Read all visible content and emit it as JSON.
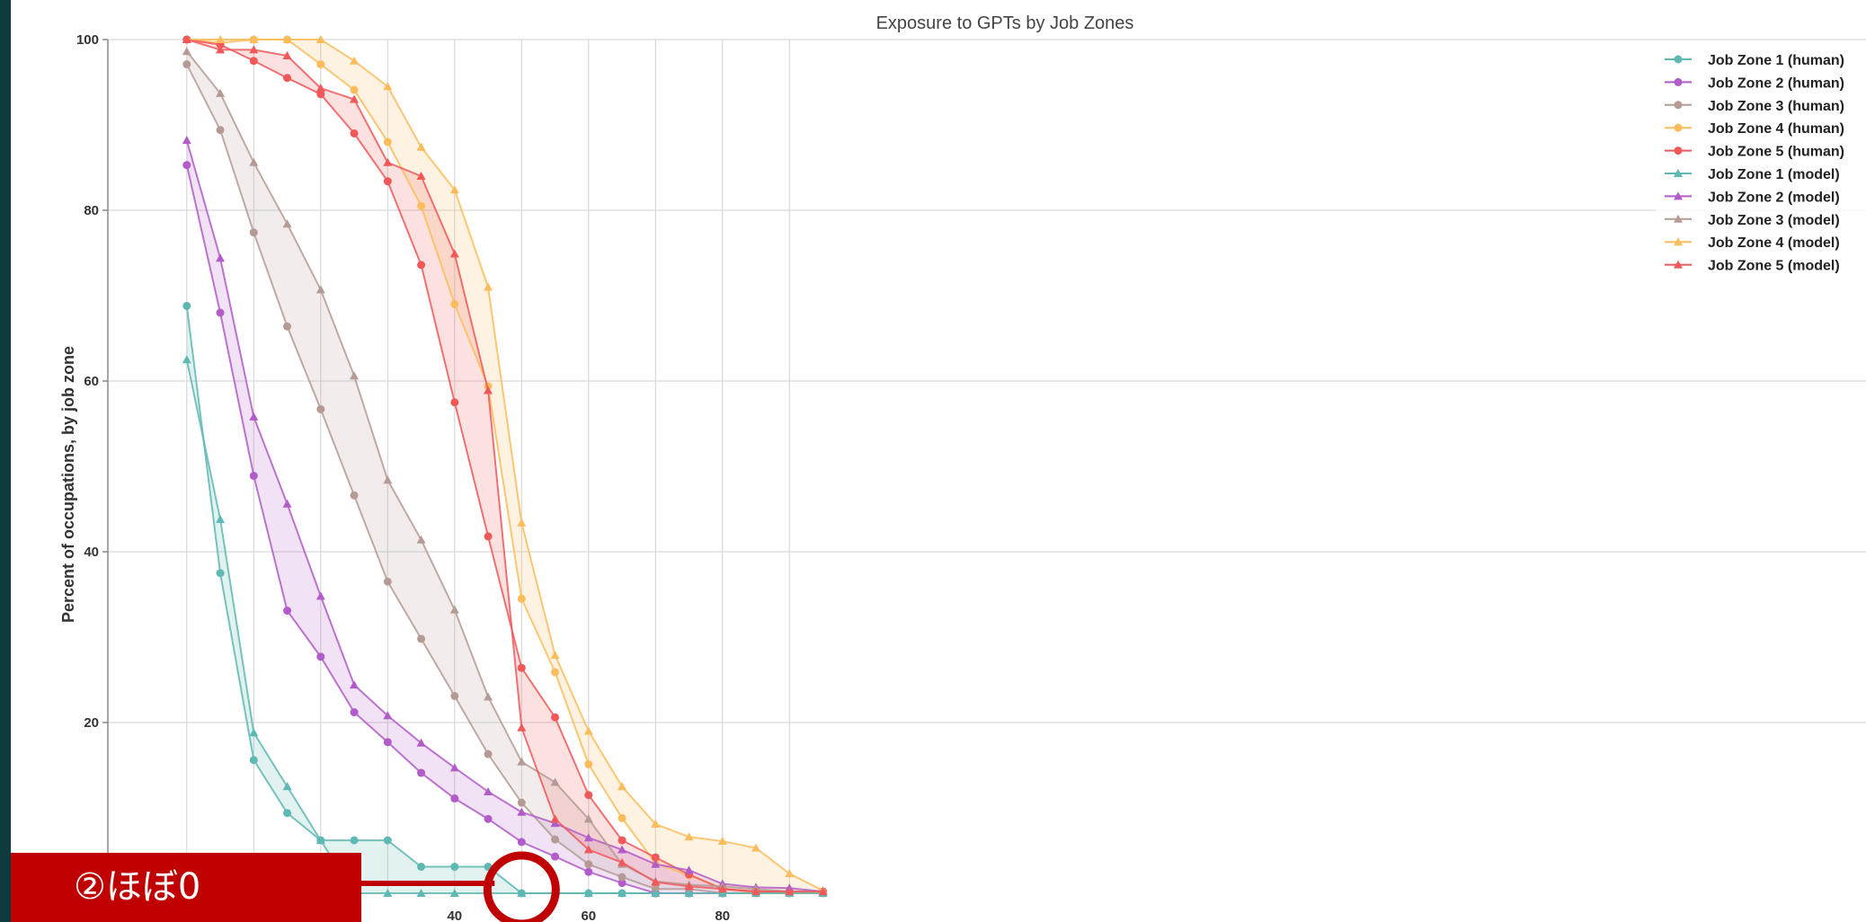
{
  "annotation": {
    "label": "②ほぼ0",
    "color": "#c00000"
  },
  "chart_data": {
    "type": "line",
    "title": "Exposure to GPTs by Job Zones",
    "xlabel": "",
    "ylabel": "Percent of occupations, by job zone",
    "xlim": [
      -10,
      100
    ],
    "ylim": [
      0,
      100
    ],
    "xticks": [
      20,
      40,
      60,
      80
    ],
    "yticks": [
      20,
      40,
      60,
      80,
      100
    ],
    "grid": true,
    "legend_position": "top-right",
    "x": [
      0,
      5,
      10,
      15,
      20,
      25,
      30,
      35,
      40,
      45,
      50,
      55,
      60,
      65,
      70,
      75,
      80,
      85,
      90,
      95
    ],
    "series": [
      {
        "name": "Job Zone 1 (human)",
        "zone": 1,
        "marker": "circle",
        "color": "#5fb8b3",
        "values": [
          68.8,
          37.5,
          15.6,
          9.4,
          6.2,
          6.2,
          6.2,
          3.1,
          3.1,
          3.1,
          0,
          0,
          0,
          0,
          0,
          0,
          0,
          0,
          0,
          0
        ]
      },
      {
        "name": "Job Zone 2 (human)",
        "zone": 2,
        "marker": "circle",
        "color": "#b15cc8",
        "values": [
          85.3,
          68.0,
          48.9,
          33.1,
          27.7,
          21.2,
          17.7,
          14.1,
          11.1,
          8.7,
          6.0,
          4.3,
          2.5,
          1.2,
          0,
          0,
          0,
          0,
          0,
          0
        ]
      },
      {
        "name": "Job Zone 3 (human)",
        "zone": 3,
        "marker": "circle",
        "color": "#b59b95",
        "values": [
          97.1,
          89.4,
          77.4,
          66.4,
          56.7,
          46.6,
          36.5,
          29.8,
          23.1,
          16.3,
          10.6,
          6.3,
          3.4,
          1.9,
          0.5,
          0.5,
          0,
          0,
          0,
          0
        ]
      },
      {
        "name": "Job Zone 4 (human)",
        "zone": 4,
        "marker": "circle",
        "color": "#fbbd5c",
        "values": [
          100,
          99.6,
          100,
          100,
          97.1,
          94.1,
          88.0,
          80.5,
          69.0,
          59.4,
          34.5,
          25.9,
          15.1,
          8.8,
          3.5,
          2.1,
          0.6,
          0,
          0,
          0
        ]
      },
      {
        "name": "Job Zone 5 (human)",
        "zone": 5,
        "marker": "circle",
        "color": "#f0585a",
        "values": [
          100,
          99.4,
          97.5,
          95.5,
          93.6,
          89.0,
          83.4,
          73.6,
          57.5,
          41.8,
          26.4,
          20.6,
          11.5,
          6.2,
          4.2,
          2.2,
          0.5,
          0.2,
          0.2,
          0.2
        ]
      },
      {
        "name": "Job Zone 1 (model)",
        "zone": 1,
        "marker": "triangle",
        "color": "#5fb8b3",
        "values": [
          62.5,
          43.8,
          18.8,
          12.5,
          6.2,
          0,
          0,
          0,
          0,
          0,
          0,
          0,
          0,
          0,
          0,
          0,
          0,
          0,
          0,
          0
        ]
      },
      {
        "name": "Job Zone 2 (model)",
        "zone": 2,
        "marker": "triangle",
        "color": "#b15cc8",
        "values": [
          88.2,
          74.4,
          55.8,
          45.6,
          34.8,
          24.4,
          20.8,
          17.6,
          14.7,
          11.9,
          9.5,
          8.2,
          6.5,
          5.1,
          3.4,
          2.7,
          1.1,
          0.7,
          0.6,
          0.2
        ]
      },
      {
        "name": "Job Zone 3 (model)",
        "zone": 3,
        "marker": "triangle",
        "color": "#b59b95",
        "values": [
          98.6,
          93.7,
          85.6,
          78.4,
          70.7,
          60.6,
          48.4,
          41.4,
          33.2,
          23.0,
          15.4,
          13.0,
          8.7,
          3.4,
          1.4,
          1.0,
          0.8,
          0.5,
          0.2,
          0.2
        ]
      },
      {
        "name": "Job Zone 4 (model)",
        "zone": 4,
        "marker": "triangle",
        "color": "#fbbd5c",
        "values": [
          100,
          100,
          100,
          100,
          100,
          97.5,
          94.5,
          87.4,
          82.4,
          71.0,
          43.4,
          27.9,
          19.0,
          12.5,
          8.1,
          6.6,
          6.1,
          5.3,
          2.3,
          0.3
        ]
      },
      {
        "name": "Job Zone 5 (model)",
        "zone": 5,
        "marker": "triangle",
        "color": "#f0585a",
        "values": [
          100,
          98.8,
          98.8,
          98.1,
          94.3,
          93.0,
          85.6,
          84.0,
          74.9,
          58.9,
          19.4,
          8.7,
          5.1,
          3.6,
          1.3,
          0.8,
          0.5,
          0.2,
          0.2,
          0.2
        ]
      }
    ]
  }
}
